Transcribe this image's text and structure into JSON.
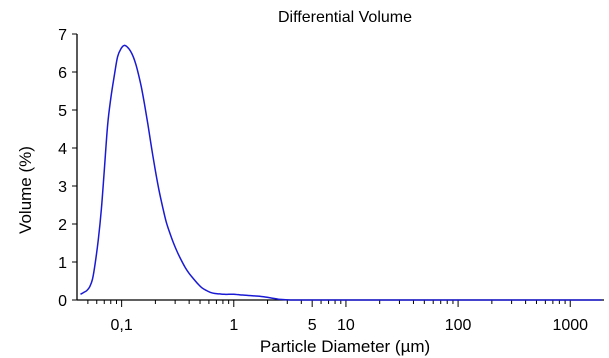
{
  "chart_data": {
    "type": "line",
    "title": "Differential Volume",
    "xlabel": "Particle Diameter (µm)",
    "ylabel": "Volume (%)",
    "x_scale": "log",
    "xlim": [
      0.04,
      2000
    ],
    "ylim": [
      0,
      7
    ],
    "legend": "none",
    "grid": false,
    "line_color": "#1a1ad4",
    "x_ticks": [
      {
        "value": 0.1,
        "label": "0,1"
      },
      {
        "value": 1,
        "label": "1"
      },
      {
        "value": 5,
        "label": "5"
      },
      {
        "value": 10,
        "label": "10"
      },
      {
        "value": 100,
        "label": "100"
      },
      {
        "value": 1000,
        "label": "1000"
      }
    ],
    "x_minor_ticks": [
      0.05,
      0.06,
      0.07,
      0.08,
      0.09,
      0.2,
      0.3,
      0.4,
      0.5,
      0.6,
      0.7,
      0.8,
      0.9,
      2,
      3,
      4,
      6,
      7,
      8,
      9,
      20,
      30,
      40,
      50,
      60,
      70,
      80,
      90,
      200,
      300,
      400,
      500,
      600,
      700,
      800,
      900
    ],
    "y_ticks": [
      {
        "value": 0,
        "label": "0"
      },
      {
        "value": 1,
        "label": "1"
      },
      {
        "value": 2,
        "label": "2"
      },
      {
        "value": 3,
        "label": "3"
      },
      {
        "value": 4,
        "label": "4"
      },
      {
        "value": 5,
        "label": "5"
      },
      {
        "value": 6,
        "label": "6"
      },
      {
        "value": 7,
        "label": "7"
      }
    ],
    "series": [
      {
        "x": [
          0.043,
          0.046,
          0.049,
          0.052,
          0.055,
          0.058,
          0.062,
          0.066,
          0.07,
          0.075,
          0.08,
          0.086,
          0.092,
          0.099,
          0.106,
          0.113,
          0.12,
          0.127,
          0.134,
          0.141,
          0.15,
          0.16,
          0.172,
          0.185,
          0.2,
          0.215,
          0.232,
          0.25,
          0.27,
          0.29,
          0.315,
          0.34,
          0.37,
          0.4,
          0.44,
          0.48,
          0.52,
          0.57,
          0.62,
          0.68,
          0.75,
          0.82,
          0.9,
          1.0,
          1.1,
          1.2,
          1.35,
          1.5,
          1.7,
          1.9,
          2.1,
          2.3,
          2.5,
          2.8,
          3.2,
          4,
          6,
          10,
          30,
          100,
          300,
          1000,
          1900
        ],
        "y": [
          0.15,
          0.2,
          0.25,
          0.35,
          0.55,
          0.95,
          1.6,
          2.4,
          3.4,
          4.6,
          5.3,
          5.9,
          6.4,
          6.62,
          6.7,
          6.65,
          6.55,
          6.4,
          6.2,
          5.95,
          5.6,
          5.15,
          4.6,
          4.0,
          3.4,
          2.9,
          2.45,
          2.05,
          1.75,
          1.5,
          1.25,
          1.05,
          0.85,
          0.7,
          0.55,
          0.42,
          0.32,
          0.25,
          0.2,
          0.17,
          0.16,
          0.15,
          0.15,
          0.15,
          0.14,
          0.13,
          0.12,
          0.11,
          0.1,
          0.08,
          0.06,
          0.04,
          0.02,
          0.01,
          0.0,
          0.0,
          0.0,
          0.0,
          0.0,
          0.0,
          0.0,
          0.0,
          0.0
        ]
      }
    ]
  }
}
